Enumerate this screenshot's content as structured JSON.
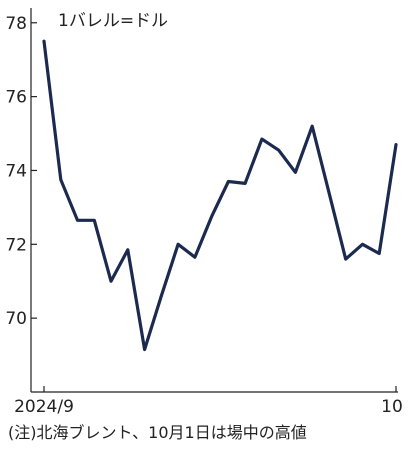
{
  "chart_data": {
    "type": "line",
    "unit_label": "1バレル=ドル",
    "y_ticks": [
      70,
      72,
      74,
      76,
      78
    ],
    "ylim": [
      68,
      78.4
    ],
    "x_labels": [
      "2024/9",
      "10"
    ],
    "series": [
      {
        "color": "#1b2a4e",
        "values": [
          77.5,
          73.75,
          72.65,
          72.65,
          71.0,
          71.85,
          69.15,
          70.6,
          72.0,
          71.65,
          72.75,
          73.7,
          73.65,
          74.85,
          74.55,
          73.95,
          75.2,
          73.4,
          71.6,
          72.0,
          71.75,
          74.7
        ]
      }
    ],
    "grid": false
  },
  "footnote": "(注)北海ブレント、10月1日は場中の高値"
}
